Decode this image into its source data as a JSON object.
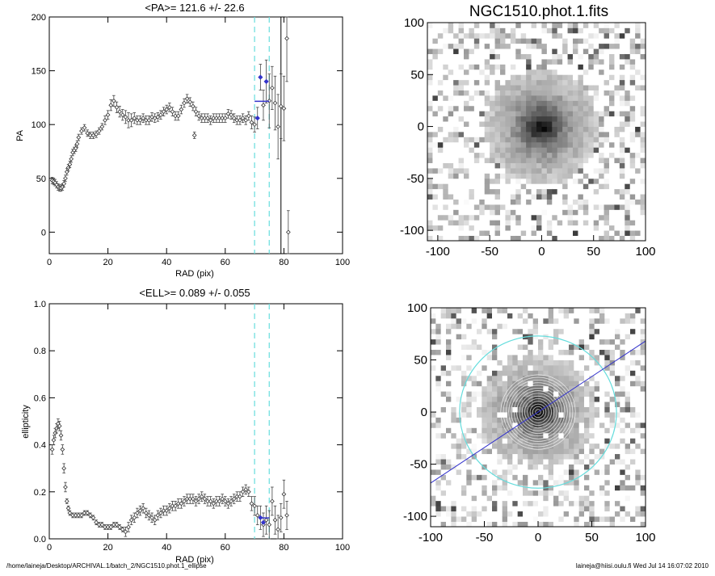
{
  "footer": {
    "path": "/home/laineja/Desktop/ARCHIVAL.1/batch_2/NGC1510.phot.1_ellipse",
    "user_time": "laineja@hiisi.oulu.fi  Wed Jul 14 16:07:02 2010"
  },
  "colors": {
    "fit_line": "#3333cc",
    "radius_marker": "#66dddd",
    "ellipse": "#66dddd",
    "axis": "#000000"
  },
  "chart_data": [
    {
      "id": "pa",
      "type": "scatter",
      "title": "<PA>= 121.6 +/-  22.6",
      "xlabel": "RAD (pix)",
      "ylabel": "PA",
      "xlim": [
        0,
        100
      ],
      "ylim": [
        -20,
        200
      ],
      "xticks": [
        0,
        20,
        40,
        60,
        80,
        100
      ],
      "yticks": [
        0,
        50,
        100,
        150,
        200
      ],
      "vlines_dashed": [
        70,
        75
      ],
      "vline_solid": 79,
      "mean_segment": {
        "x": [
          70,
          75
        ],
        "y": 121.6
      },
      "points": [
        [
          1,
          48,
          3
        ],
        [
          1.5,
          47,
          3
        ],
        [
          2,
          46,
          3
        ],
        [
          2.5,
          44,
          3
        ],
        [
          3,
          42,
          3
        ],
        [
          3.5,
          41,
          3
        ],
        [
          4,
          41,
          3
        ],
        [
          4.5,
          42,
          3
        ],
        [
          5,
          45,
          3
        ],
        [
          5.5,
          50,
          3
        ],
        [
          6,
          56,
          3
        ],
        [
          6.5,
          60,
          3
        ],
        [
          7,
          63,
          3
        ],
        [
          7.5,
          68,
          3
        ],
        [
          8,
          74,
          3
        ],
        [
          8.5,
          76,
          3
        ],
        [
          9,
          78,
          3
        ],
        [
          9.5,
          82,
          3
        ],
        [
          10,
          88,
          3
        ],
        [
          11,
          94,
          3
        ],
        [
          12,
          97,
          3
        ],
        [
          13,
          92,
          3
        ],
        [
          14,
          90,
          3
        ],
        [
          15,
          90,
          3
        ],
        [
          16,
          91,
          3
        ],
        [
          17,
          94,
          3
        ],
        [
          18,
          98,
          3
        ],
        [
          19,
          104,
          4
        ],
        [
          20,
          109,
          4
        ],
        [
          21,
          118,
          5
        ],
        [
          22,
          122,
          5
        ],
        [
          23,
          116,
          5
        ],
        [
          24,
          112,
          5
        ],
        [
          25,
          109,
          5
        ],
        [
          26,
          107,
          6
        ],
        [
          27,
          104,
          7
        ],
        [
          28,
          104,
          6
        ],
        [
          29,
          106,
          5
        ],
        [
          30,
          104,
          4
        ],
        [
          31,
          104,
          4
        ],
        [
          32,
          106,
          4
        ],
        [
          33,
          104,
          4
        ],
        [
          34,
          104,
          4
        ],
        [
          35,
          107,
          4
        ],
        [
          36,
          106,
          4
        ],
        [
          37,
          107,
          4
        ],
        [
          38,
          109,
          4
        ],
        [
          39,
          112,
          4
        ],
        [
          40,
          114,
          4
        ],
        [
          41,
          116,
          4
        ],
        [
          42,
          112,
          4
        ],
        [
          43,
          108,
          4
        ],
        [
          44,
          108,
          4
        ],
        [
          45,
          114,
          4
        ],
        [
          46,
          120,
          4
        ],
        [
          47,
          124,
          4
        ],
        [
          48,
          121,
          4
        ],
        [
          49,
          117,
          4
        ],
        [
          49.5,
          90,
          3
        ],
        [
          50,
          112,
          4
        ],
        [
          51,
          108,
          4
        ],
        [
          52,
          106,
          4
        ],
        [
          53,
          106,
          4
        ],
        [
          54,
          106,
          4
        ],
        [
          55,
          104,
          4
        ],
        [
          56,
          106,
          4
        ],
        [
          57,
          106,
          4
        ],
        [
          58,
          106,
          4
        ],
        [
          59,
          106,
          4
        ],
        [
          60,
          106,
          4
        ],
        [
          61,
          110,
          4
        ],
        [
          62,
          109,
          4
        ],
        [
          63,
          106,
          4
        ],
        [
          64,
          104,
          4
        ],
        [
          65,
          104,
          4
        ],
        [
          66,
          106,
          4
        ],
        [
          67,
          104,
          4
        ],
        [
          68,
          108,
          4
        ],
        [
          69,
          102,
          6
        ],
        [
          70,
          100,
          7
        ],
        [
          71,
          106,
          10
        ],
        [
          72,
          144,
          12
        ],
        [
          73,
          118,
          14
        ],
        [
          74,
          140,
          20
        ],
        [
          75,
          122,
          25
        ],
        [
          76,
          134,
          20
        ],
        [
          77,
          120,
          25
        ],
        [
          78,
          98,
          30
        ],
        [
          79,
          117,
          30
        ],
        [
          80,
          115,
          30
        ],
        [
          81,
          180,
          40
        ],
        [
          81.5,
          0,
          20
        ]
      ],
      "highlight_points": [
        [
          71,
          106
        ],
        [
          72,
          144
        ],
        [
          74,
          140
        ]
      ]
    },
    {
      "id": "ell",
      "type": "scatter",
      "title": "<ELL>= 0.089 +/-  0.055",
      "xlabel": "RAD (pix)",
      "ylabel": "ellipticity",
      "xlim": [
        0,
        100
      ],
      "ylim": [
        0,
        1
      ],
      "xticks": [
        0,
        20,
        40,
        60,
        80,
        100
      ],
      "yticks": [
        0.0,
        0.2,
        0.4,
        0.6,
        0.8,
        1.0
      ],
      "vlines_dashed": [
        70,
        75
      ],
      "mean_segment": {
        "x": [
          72,
          75
        ],
        "y": 0.089
      },
      "points": [
        [
          1,
          0.38,
          0.02
        ],
        [
          1.5,
          0.42,
          0.02
        ],
        [
          2,
          0.45,
          0.02
        ],
        [
          2.5,
          0.47,
          0.02
        ],
        [
          3,
          0.49,
          0.02
        ],
        [
          3.5,
          0.48,
          0.02
        ],
        [
          4,
          0.44,
          0.02
        ],
        [
          4.5,
          0.38,
          0.02
        ],
        [
          5,
          0.3,
          0.02
        ],
        [
          5.5,
          0.22,
          0.02
        ],
        [
          6,
          0.16,
          0.01
        ],
        [
          6.5,
          0.13,
          0.01
        ],
        [
          7,
          0.11,
          0.01
        ],
        [
          8,
          0.1,
          0.01
        ],
        [
          9,
          0.1,
          0.01
        ],
        [
          10,
          0.1,
          0.01
        ],
        [
          11,
          0.1,
          0.01
        ],
        [
          12,
          0.11,
          0.01
        ],
        [
          13,
          0.11,
          0.01
        ],
        [
          14,
          0.1,
          0.01
        ],
        [
          15,
          0.09,
          0.01
        ],
        [
          16,
          0.07,
          0.01
        ],
        [
          17,
          0.06,
          0.01
        ],
        [
          18,
          0.06,
          0.01
        ],
        [
          19,
          0.05,
          0.01
        ],
        [
          20,
          0.05,
          0.01
        ],
        [
          21,
          0.05,
          0.01
        ],
        [
          22,
          0.06,
          0.01
        ],
        [
          23,
          0.06,
          0.01
        ],
        [
          24,
          0.05,
          0.01
        ],
        [
          25,
          0.04,
          0.01
        ],
        [
          26,
          0.03,
          0.02
        ],
        [
          27,
          0.05,
          0.02
        ],
        [
          28,
          0.08,
          0.02
        ],
        [
          29,
          0.09,
          0.02
        ],
        [
          30,
          0.11,
          0.02
        ],
        [
          31,
          0.12,
          0.02
        ],
        [
          32,
          0.13,
          0.02
        ],
        [
          33,
          0.11,
          0.02
        ],
        [
          34,
          0.1,
          0.02
        ],
        [
          35,
          0.09,
          0.02
        ],
        [
          36,
          0.08,
          0.02
        ],
        [
          37,
          0.1,
          0.02
        ],
        [
          38,
          0.11,
          0.02
        ],
        [
          39,
          0.12,
          0.02
        ],
        [
          40,
          0.12,
          0.02
        ],
        [
          41,
          0.13,
          0.02
        ],
        [
          42,
          0.14,
          0.02
        ],
        [
          43,
          0.14,
          0.02
        ],
        [
          44,
          0.15,
          0.02
        ],
        [
          45,
          0.15,
          0.02
        ],
        [
          46,
          0.16,
          0.02
        ],
        [
          47,
          0.17,
          0.02
        ],
        [
          48,
          0.17,
          0.02
        ],
        [
          49,
          0.17,
          0.02
        ],
        [
          50,
          0.16,
          0.02
        ],
        [
          51,
          0.17,
          0.02
        ],
        [
          52,
          0.18,
          0.02
        ],
        [
          53,
          0.17,
          0.02
        ],
        [
          54,
          0.16,
          0.02
        ],
        [
          55,
          0.16,
          0.02
        ],
        [
          56,
          0.15,
          0.02
        ],
        [
          57,
          0.16,
          0.02
        ],
        [
          58,
          0.16,
          0.02
        ],
        [
          59,
          0.17,
          0.02
        ],
        [
          60,
          0.16,
          0.02
        ],
        [
          61,
          0.15,
          0.02
        ],
        [
          62,
          0.16,
          0.02
        ],
        [
          63,
          0.17,
          0.02
        ],
        [
          64,
          0.18,
          0.02
        ],
        [
          65,
          0.18,
          0.02
        ],
        [
          66,
          0.2,
          0.02
        ],
        [
          67,
          0.21,
          0.02
        ],
        [
          68,
          0.2,
          0.02
        ],
        [
          69,
          0.15,
          0.03
        ],
        [
          70,
          0.14,
          0.04
        ],
        [
          71,
          0.1,
          0.04
        ],
        [
          72,
          0.09,
          0.05
        ],
        [
          73,
          0.06,
          0.05
        ],
        [
          74,
          0.08,
          0.06
        ],
        [
          75,
          0.06,
          0.06
        ],
        [
          76,
          0.16,
          0.06
        ],
        [
          77,
          0.08,
          0.06
        ],
        [
          78,
          0.04,
          0.06
        ],
        [
          79,
          0.09,
          0.06
        ],
        [
          80,
          0.19,
          0.06
        ],
        [
          81,
          0.1,
          0.06
        ]
      ],
      "highlight_points": [
        [
          72,
          0.09
        ],
        [
          73,
          0.07
        ]
      ]
    },
    {
      "id": "image",
      "type": "heatmap",
      "title": "NGC1510.phot.1.fits",
      "xlim": [
        -110,
        100
      ],
      "ylim": [
        -110,
        100
      ],
      "xticks": [
        -100,
        -50,
        0,
        50,
        100
      ],
      "yticks": [
        -100,
        -50,
        0,
        50,
        100
      ],
      "colormap": "grayscale-inverted"
    },
    {
      "id": "overlay",
      "type": "heatmap",
      "xlim": [
        -100,
        100
      ],
      "ylim": [
        -110,
        100
      ],
      "xticks": [
        -100,
        -50,
        0,
        50,
        100
      ],
      "yticks": [
        -100,
        -50,
        0,
        50,
        100
      ],
      "colormap": "grayscale-inverted",
      "ellipse_radius": 73,
      "pa_line_deg": 27
    }
  ]
}
